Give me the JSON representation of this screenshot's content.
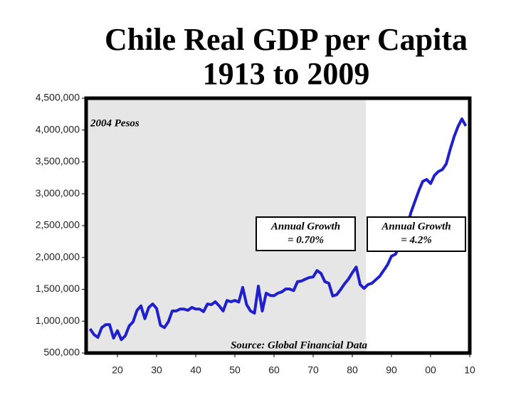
{
  "chart_data": {
    "type": "line",
    "title": "Chile Real GDP per Capita",
    "subtitle": "1913 to 2009",
    "unit_note": "2004 Pesos",
    "source": "Source: Global Financial Data",
    "growth_notes": [
      [
        "Annual Growth",
        "= 0.70%"
      ],
      [
        "Annual Growth",
        "= 4.2%"
      ]
    ],
    "shaded_range": [
      1912,
      1983.5
    ],
    "color": "#1f1fcc",
    "xlim": [
      1912,
      2010
    ],
    "xticks": [
      {
        "value": 1920,
        "label": "20"
      },
      {
        "value": 1930,
        "label": "30"
      },
      {
        "value": 1940,
        "label": "40"
      },
      {
        "value": 1950,
        "label": "50"
      },
      {
        "value": 1960,
        "label": "60"
      },
      {
        "value": 1970,
        "label": "70"
      },
      {
        "value": 1980,
        "label": "80"
      },
      {
        "value": 1990,
        "label": "90"
      },
      {
        "value": 2000,
        "label": "00"
      },
      {
        "value": 2010,
        "label": "10"
      }
    ],
    "ylim": [
      500000,
      4500000
    ],
    "yticks": [
      {
        "value": 500000,
        "label": "500,000"
      },
      {
        "value": 1000000,
        "label": "1,000,000"
      },
      {
        "value": 1500000,
        "label": "1,500,000"
      },
      {
        "value": 2000000,
        "label": "2,000,000"
      },
      {
        "value": 2500000,
        "label": "2,500,000"
      },
      {
        "value": 3000000,
        "label": "3,000,000"
      },
      {
        "value": 3500000,
        "label": "3,500,000"
      },
      {
        "value": 4000000,
        "label": "4,000,000"
      },
      {
        "value": 4500000,
        "label": "4,500,000"
      }
    ],
    "x": [
      1913,
      1914,
      1915,
      1916,
      1917,
      1918,
      1919,
      1920,
      1921,
      1922,
      1923,
      1924,
      1925,
      1926,
      1927,
      1928,
      1929,
      1930,
      1931,
      1932,
      1933,
      1934,
      1935,
      1936,
      1937,
      1938,
      1939,
      1940,
      1941,
      1942,
      1943,
      1944,
      1945,
      1946,
      1947,
      1948,
      1949,
      1950,
      1951,
      1952,
      1953,
      1954,
      1955,
      1956,
      1957,
      1958,
      1959,
      1960,
      1961,
      1962,
      1963,
      1964,
      1965,
      1966,
      1967,
      1968,
      1969,
      1970,
      1971,
      1972,
      1973,
      1974,
      1975,
      1976,
      1977,
      1978,
      1979,
      1980,
      1981,
      1982,
      1983,
      1984,
      1985,
      1986,
      1987,
      1988,
      1989,
      1990,
      1991,
      1992,
      1993,
      1994,
      1995,
      1996,
      1997,
      1998,
      1999,
      2000,
      2001,
      2002,
      2003,
      2004,
      2005,
      2006,
      2007,
      2008,
      2009
    ],
    "values": [
      880000,
      790000,
      745000,
      900000,
      945000,
      945000,
      735000,
      850000,
      710000,
      770000,
      925000,
      990000,
      1170000,
      1240000,
      1040000,
      1215000,
      1270000,
      1200000,
      935000,
      900000,
      990000,
      1160000,
      1160000,
      1190000,
      1190000,
      1170000,
      1215000,
      1190000,
      1190000,
      1150000,
      1270000,
      1260000,
      1305000,
      1240000,
      1160000,
      1325000,
      1305000,
      1325000,
      1300000,
      1530000,
      1260000,
      1160000,
      1125000,
      1550000,
      1160000,
      1440000,
      1405000,
      1400000,
      1440000,
      1460000,
      1505000,
      1505000,
      1480000,
      1620000,
      1630000,
      1660000,
      1685000,
      1695000,
      1795000,
      1750000,
      1620000,
      1595000,
      1395000,
      1415000,
      1495000,
      1585000,
      1660000,
      1760000,
      1850000,
      1575000,
      1515000,
      1575000,
      1595000,
      1650000,
      1705000,
      1795000,
      1885000,
      2020000,
      2050000,
      2165000,
      2355000,
      2490000,
      2710000,
      2880000,
      3050000,
      3195000,
      3225000,
      3160000,
      3290000,
      3350000,
      3380000,
      3470000,
      3695000,
      3895000,
      4055000,
      4175000,
      4065000
    ]
  }
}
